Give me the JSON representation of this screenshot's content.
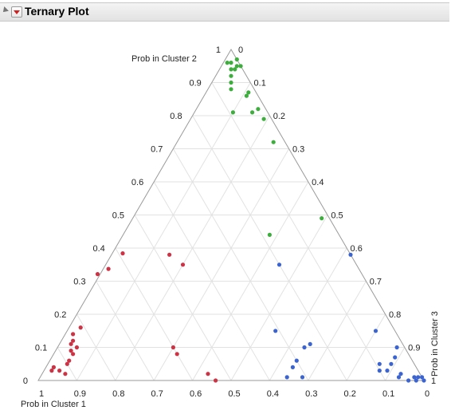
{
  "panel": {
    "title": "Ternary Plot"
  },
  "chart_data": {
    "type": "scatter",
    "subtype": "ternary",
    "axes": {
      "left": "Prob in Cluster 2",
      "bottom": "Prob in Cluster 1",
      "right": "Prob in Cluster 3"
    },
    "ticks": [
      "0",
      "0.1",
      "0.2",
      "0.3",
      "0.4",
      "0.5",
      "0.6",
      "0.7",
      "0.8",
      "0.9",
      "1"
    ],
    "grid": true,
    "series": [
      {
        "color": "#3dae3d",
        "points": [
          [
            0.0,
            0.97,
            0.03
          ],
          [
            0.02,
            0.96,
            0.02
          ],
          [
            0.03,
            0.96,
            0.01
          ],
          [
            0.0,
            0.95,
            0.05
          ],
          [
            0.01,
            0.95,
            0.04
          ],
          [
            0.02,
            0.94,
            0.04
          ],
          [
            0.03,
            0.94,
            0.03
          ],
          [
            0.04,
            0.92,
            0.04
          ],
          [
            0.05,
            0.9,
            0.05
          ],
          [
            0.06,
            0.88,
            0.06
          ],
          [
            0.02,
            0.87,
            0.11
          ],
          [
            0.03,
            0.86,
            0.11
          ],
          [
            0.09,
            0.81,
            0.1
          ],
          [
            0.02,
            0.82,
            0.16
          ],
          [
            0.04,
            0.81,
            0.15
          ],
          [
            0.02,
            0.79,
            0.19
          ],
          [
            0.03,
            0.72,
            0.25
          ],
          [
            0.02,
            0.49,
            0.49
          ],
          [
            0.18,
            0.44,
            0.38
          ]
        ]
      },
      {
        "color": "#cc3344",
        "points": [
          [
            0.61,
            0.43,
            0.0
          ],
          [
            0.66,
            0.36,
            0.0
          ],
          [
            0.68,
            0.31,
            0.0
          ],
          [
            0.47,
            0.38,
            0.15
          ],
          [
            0.45,
            0.35,
            0.2
          ],
          [
            0.81,
            0.16,
            0.03
          ],
          [
            0.84,
            0.14,
            0.02
          ],
          [
            0.85,
            0.12,
            0.03
          ],
          [
            0.86,
            0.11,
            0.03
          ],
          [
            0.85,
            0.1,
            0.05
          ],
          [
            0.87,
            0.09,
            0.04
          ],
          [
            0.87,
            0.08,
            0.05
          ],
          [
            0.89,
            0.06,
            0.05
          ],
          [
            0.9,
            0.05,
            0.05
          ],
          [
            0.94,
            0.04,
            0.02
          ],
          [
            0.95,
            0.03,
            0.02
          ],
          [
            0.93,
            0.03,
            0.04
          ],
          [
            0.92,
            0.02,
            0.06
          ],
          [
            0.6,
            0.1,
            0.3
          ],
          [
            0.6,
            0.08,
            0.32
          ],
          [
            0.55,
            0.02,
            0.43
          ],
          [
            0.54,
            0.0,
            0.46
          ]
        ]
      },
      {
        "color": "#3b64d0",
        "points": [
          [
            0.0,
            0.38,
            0.62
          ],
          [
            0.2,
            0.35,
            0.45
          ],
          [
            0.31,
            0.15,
            0.54
          ],
          [
            0.24,
            0.11,
            0.65
          ],
          [
            0.26,
            0.1,
            0.64
          ],
          [
            0.3,
            0.06,
            0.64
          ],
          [
            0.32,
            0.04,
            0.64
          ],
          [
            0.35,
            0.01,
            0.64
          ],
          [
            0.31,
            0.01,
            0.68
          ],
          [
            0.05,
            0.15,
            0.8
          ],
          [
            0.02,
            0.1,
            0.88
          ],
          [
            0.04,
            0.07,
            0.89
          ],
          [
            0.06,
            0.05,
            0.89
          ],
          [
            0.09,
            0.05,
            0.86
          ],
          [
            0.1,
            0.03,
            0.87
          ],
          [
            0.08,
            0.03,
            0.89
          ],
          [
            0.05,
            0.02,
            0.93
          ],
          [
            0.06,
            0.01,
            0.93
          ],
          [
            0.04,
            0.0,
            0.96
          ],
          [
            0.02,
            0.01,
            0.97
          ],
          [
            0.01,
            0.01,
            0.98
          ],
          [
            0.0,
            0.01,
            0.99
          ],
          [
            0.0,
            0.0,
            1.0
          ],
          [
            0.02,
            0.0,
            0.98
          ]
        ]
      }
    ]
  }
}
